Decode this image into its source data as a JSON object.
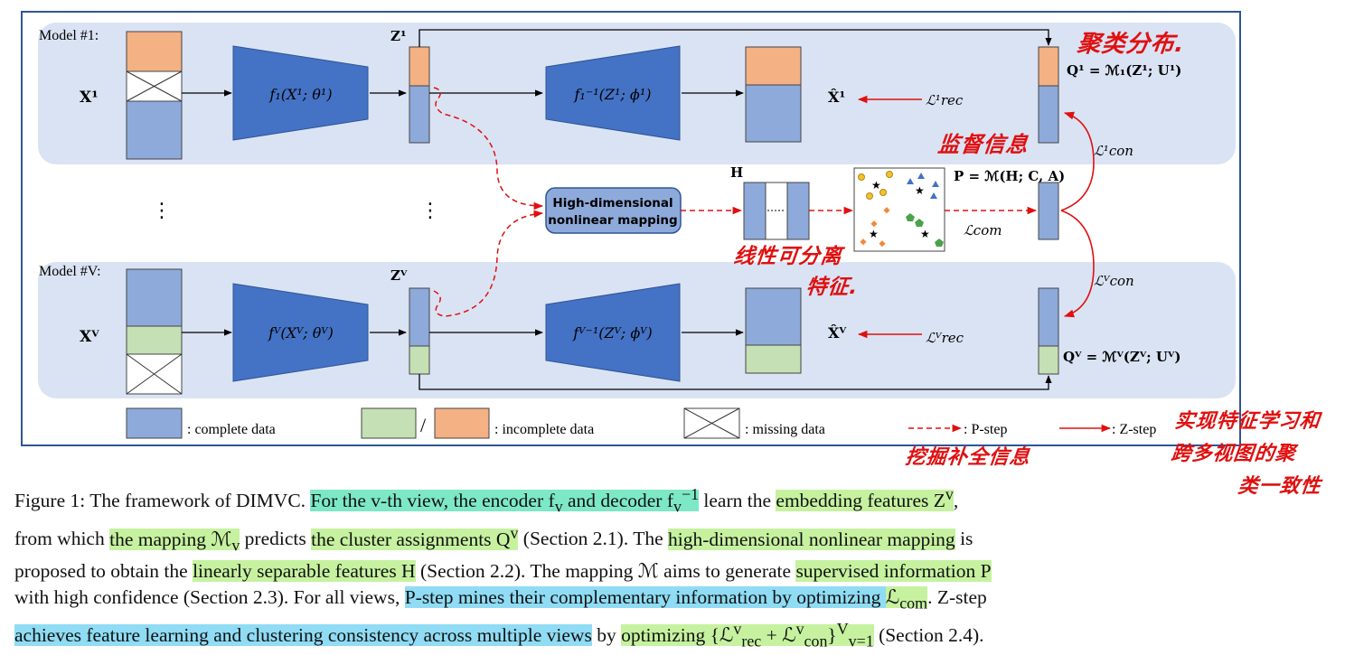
{
  "models": {
    "model1": {
      "title": "Model #1:",
      "input": "X¹",
      "encoder": "f₁(X¹; θ¹)",
      "latent": "Z¹",
      "decoder": "f₁⁻¹(Z¹; ϕ¹)",
      "recon": "X̂¹",
      "rec_loss": "ℒ¹rec",
      "assign": "Q¹ = ℳ₁(Z¹; U¹)",
      "con_loss": "ℒ¹con"
    },
    "modelV": {
      "title": "Model #V:",
      "input": "Xⱽ",
      "encoder": "fⱽ(Xⱽ; θⱽ)",
      "latent": "Zⱽ",
      "decoder": "fⱽ⁻¹(Zⱽ; ϕⱽ)",
      "recon": "X̂ⱽ",
      "rec_loss": "ℒⱽrec",
      "assign": "Qⱽ = ℳⱽ(Zⱽ; Uⱽ)",
      "con_loss": "ℒⱽcon"
    }
  },
  "mapping_box": [
    "High-dimensional",
    "nonlinear mapping"
  ],
  "H_label": "H",
  "P_label": "P = ℳ(H; C, A)",
  "com_loss": "ℒcom",
  "legend": {
    "complete": ": complete data",
    "slash": "/",
    "incomplete": ": incomplete data",
    "missing": ": missing data",
    "pstep": ": P-step",
    "zstep": ": Z-step"
  },
  "annotations": {
    "cluster_dist": "聚类分布.",
    "supervision": "监督信息",
    "linear_sep": "线性可分离",
    "features": "特征.",
    "mine_comp": "挖掘补全信息",
    "z_step_note": [
      "实现特征学习和",
      "跨多视图的聚",
      "类一致性"
    ]
  },
  "caption": {
    "s1": "Figure 1: The framework of DIMVC. ",
    "h1": "For the v-th view, the encoder f",
    "h1_sub": "v",
    "h1b": " and decoder f",
    "h1b_sub": "v",
    "h1b_sup": "−1",
    "s2": " learn the ",
    "h2": "embedding features Z",
    "h2_sup": "v",
    "s3": ",",
    "s4": "from which ",
    "h3": "the mapping ℳ",
    "h3_sub": "v",
    "s5": " predicts ",
    "h4": "the cluster assignments Q",
    "h4_sup": "v",
    "s6": " (Section 2.1). The ",
    "h5": "high-dimensional nonlinear mapping",
    "s7": " is",
    "s8": "proposed to obtain the ",
    "h6": "linearly separable features H",
    "s9": " (Section 2.2). The mapping ℳ aims to generate ",
    "h7": "supervised information P",
    "s10": "with high confidence (Section 2.3). For all views, ",
    "h8": "P-step mines their complementary information by optimizing ",
    "h8_math": "ℒ",
    "h8_sub": "com",
    "s11": ". Z-step",
    "h9": "achieves feature learning and clustering consistency across multiple views",
    "s12": " by ",
    "h10": "optimizing {ℒ",
    "h10_a_sup": "v",
    "h10_a_sub": "rec",
    "h10_plus": " + ℒ",
    "h10_b_sup": "v",
    "h10_b_sub": "con",
    "h10_end": "}",
    "h10_end_sup": "V",
    "h10_end_sub": "v=1",
    "s13": " (Section 2.4)."
  },
  "colors": {
    "complete": "#8eaadb",
    "incomplete_green": "#c5e0b4",
    "incomplete_orange": "#f4b183",
    "trapezoid": "#4472c4",
    "panel_bg": "#dae3f3",
    "border": "#2f5597",
    "annotation": "#e01010"
  }
}
